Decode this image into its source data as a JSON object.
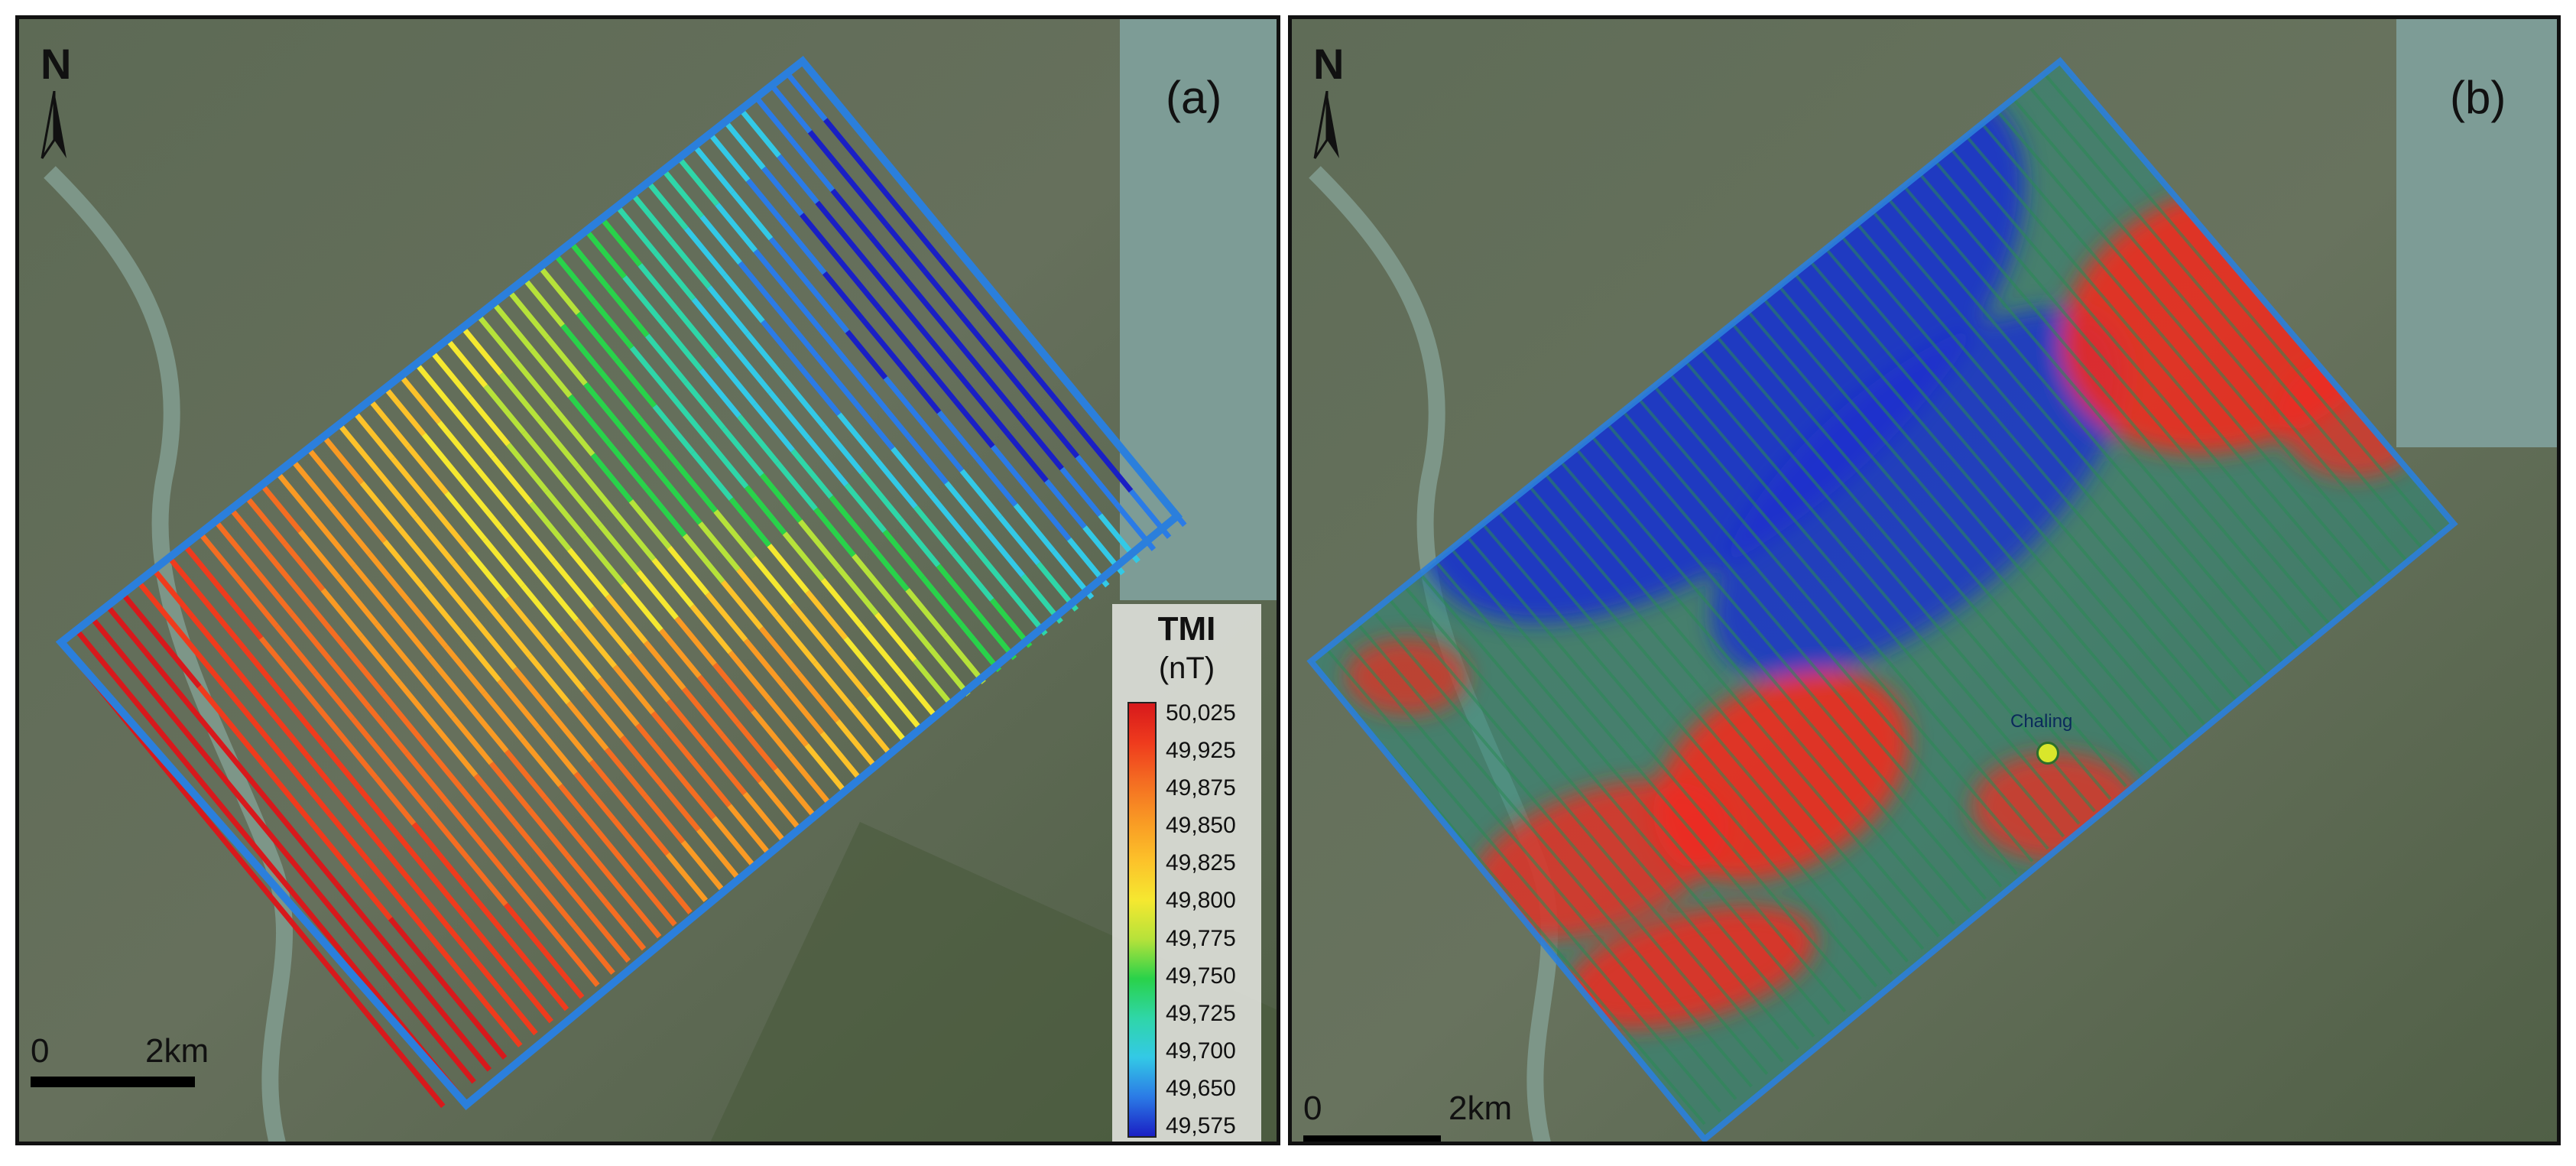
{
  "panel_a": {
    "label": "(a)",
    "north": "N",
    "scale": {
      "zero": "0",
      "distance": "2km"
    },
    "legend": {
      "title": "TMI",
      "unit": "(nT)",
      "ticks": [
        "50,025",
        "49,925",
        "49,875",
        "49,850",
        "49,825",
        "49,800",
        "49,775",
        "49,750",
        "49,725",
        "49,700",
        "49,650",
        "49,575"
      ],
      "colors": [
        "#d7191c",
        "#ef3b1d",
        "#f46d22",
        "#f99a24",
        "#fcc22a",
        "#f5e830",
        "#b6e23a",
        "#29d24a",
        "#2fd6a8",
        "#33c9e6",
        "#2b7be6",
        "#1a1fc4"
      ]
    }
  },
  "panel_b": {
    "label": "(b)",
    "north": "N",
    "scale": {
      "zero": "0",
      "distance": "2km"
    },
    "place": "Chaling"
  }
}
